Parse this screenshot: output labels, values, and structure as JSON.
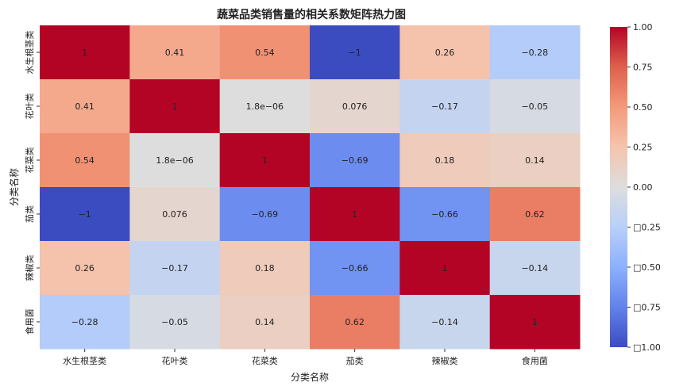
{
  "chart_data": {
    "type": "heatmap",
    "title": "蔬菜品类销售量的相关系数矩阵热力图",
    "xlabel": "分类名称",
    "ylabel": "分类名称",
    "x_categories": [
      "水生根茎类",
      "花叶类",
      "花菜类",
      "茄类",
      "辣椒类",
      "食用菌"
    ],
    "y_categories": [
      "水生根茎类",
      "花叶类",
      "花菜类",
      "茄类",
      "辣椒类",
      "食用菌"
    ],
    "values": [
      [
        1,
        0.41,
        0.54,
        -1,
        0.26,
        -0.28
      ],
      [
        0.41,
        1,
        1.8e-06,
        0.076,
        -0.17,
        -0.05
      ],
      [
        0.54,
        1.8e-06,
        1,
        -0.69,
        0.18,
        0.14
      ],
      [
        -1,
        0.076,
        -0.69,
        1,
        -0.66,
        0.62
      ],
      [
        0.26,
        -0.17,
        0.18,
        -0.66,
        1,
        -0.14
      ],
      [
        -0.28,
        -0.05,
        0.14,
        0.62,
        -0.14,
        1
      ]
    ],
    "annotations": [
      [
        "1",
        "0.41",
        "0.54",
        "−1",
        "0.26",
        "−0.28"
      ],
      [
        "0.41",
        "1",
        "1.8e−06",
        "0.076",
        "−0.17",
        "−0.05"
      ],
      [
        "0.54",
        "1.8e−06",
        "1",
        "−0.69",
        "0.18",
        "0.14"
      ],
      [
        "−1",
        "0.076",
        "−0.69",
        "1",
        "−0.66",
        "0.62"
      ],
      [
        "0.26",
        "−0.17",
        "0.18",
        "−0.66",
        "1",
        "−0.14"
      ],
      [
        "−0.28",
        "−0.05",
        "0.14",
        "0.62",
        "−0.14",
        "1"
      ]
    ],
    "colormap": "coolwarm",
    "vmin": -1,
    "vmax": 1,
    "colorbar": {
      "ticks": [
        1.0,
        0.75,
        0.5,
        0.25,
        0.0,
        -0.25,
        -0.5,
        -0.75,
        -1.0
      ],
      "tick_labels": [
        "1.00",
        "0.75",
        "0.50",
        "0.25",
        "0.00",
        "□0.25",
        "□0.50",
        "□0.75",
        "□1.00"
      ]
    },
    "colors": {
      "cold": "#3b4cc0",
      "neutral": "#dddddd",
      "hot": "#b40426"
    }
  }
}
